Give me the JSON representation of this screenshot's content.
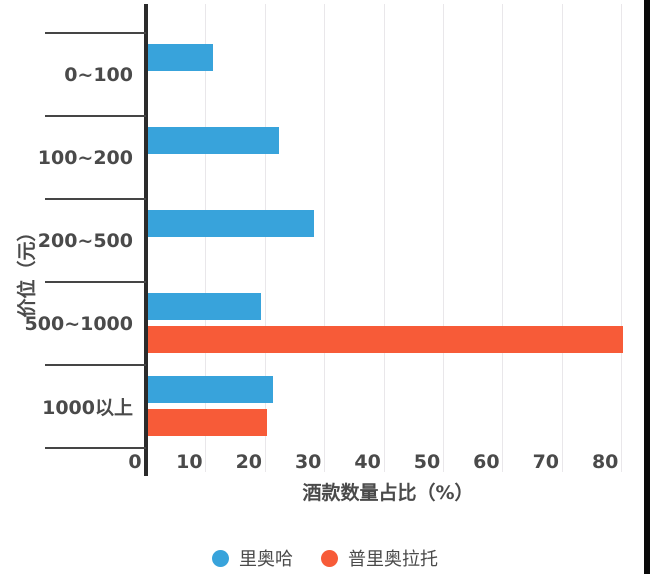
{
  "chart_data": {
    "type": "bar",
    "orientation": "horizontal",
    "categories": [
      "0~100",
      "100~200",
      "200~500",
      "500~1000",
      "1000以上"
    ],
    "series": [
      {
        "name": "里奥哈",
        "color": "#38A3DB",
        "values": [
          11,
          22,
          28,
          19,
          21
        ]
      },
      {
        "name": "普里奥拉托",
        "color": "#F75B38",
        "values": [
          0,
          0,
          0,
          80,
          20
        ]
      }
    ],
    "xlabel": "酒款数量占比（%）",
    "ylabel": "价位（元）",
    "x_ticks": [
      0,
      10,
      20,
      30,
      40,
      50,
      60,
      70,
      80
    ],
    "xlim": [
      0,
      84
    ],
    "grid": true,
    "legend_position": "bottom",
    "colors": {
      "text": "#4A4A4A",
      "axis": "#2B2B2B",
      "separator": "#454545",
      "grid": "#E9E7EA",
      "background": "#FFFFFF",
      "right_border": "#0A0A0A"
    }
  }
}
